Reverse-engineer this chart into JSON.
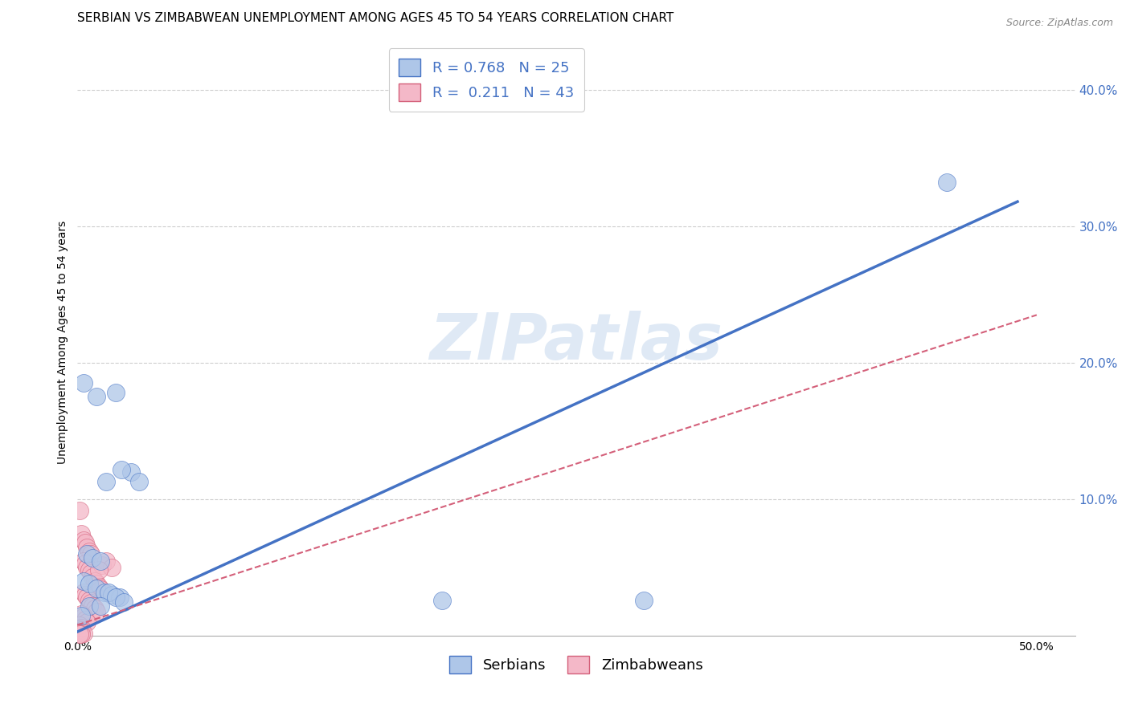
{
  "title": "SERBIAN VS ZIMBABWEAN UNEMPLOYMENT AMONG AGES 45 TO 54 YEARS CORRELATION CHART",
  "source": "Source: ZipAtlas.com",
  "ylabel": "Unemployment Among Ages 45 to 54 years",
  "xlim": [
    0.0,
    0.52
  ],
  "ylim": [
    -0.01,
    0.44
  ],
  "ytick_positions": [
    0.1,
    0.2,
    0.3,
    0.4
  ],
  "ytick_labels": [
    "10.0%",
    "20.0%",
    "30.0%",
    "40.0%"
  ],
  "xtick_positions": [
    0.0,
    0.5
  ],
  "xtick_labels": [
    "0.0%",
    "50.0%"
  ],
  "legend_entry1": "R = 0.768   N = 25",
  "legend_entry2": "R =  0.211   N = 43",
  "serbian_color": "#aec6e8",
  "zimbabwean_color": "#f4b8c8",
  "serbian_line_color": "#4472c4",
  "zimbabwean_line_color": "#d4607a",
  "watermark_text": "ZIPatlas",
  "serbian_points": [
    [
      0.003,
      0.185
    ],
    [
      0.01,
      0.175
    ],
    [
      0.02,
      0.178
    ],
    [
      0.028,
      0.12
    ],
    [
      0.015,
      0.113
    ],
    [
      0.023,
      0.122
    ],
    [
      0.032,
      0.113
    ],
    [
      0.005,
      0.06
    ],
    [
      0.008,
      0.057
    ],
    [
      0.012,
      0.055
    ],
    [
      0.003,
      0.04
    ],
    [
      0.006,
      0.038
    ],
    [
      0.01,
      0.035
    ],
    [
      0.014,
      0.032
    ],
    [
      0.018,
      0.03
    ],
    [
      0.022,
      0.028
    ],
    [
      0.016,
      0.032
    ],
    [
      0.02,
      0.028
    ],
    [
      0.024,
      0.025
    ],
    [
      0.006,
      0.022
    ],
    [
      0.012,
      0.022
    ],
    [
      0.19,
      0.026
    ],
    [
      0.295,
      0.026
    ],
    [
      0.453,
      0.332
    ],
    [
      0.002,
      0.015
    ]
  ],
  "zimbabwean_points": [
    [
      0.001,
      0.092
    ],
    [
      0.002,
      0.075
    ],
    [
      0.003,
      0.07
    ],
    [
      0.004,
      0.068
    ],
    [
      0.005,
      0.065
    ],
    [
      0.006,
      0.062
    ],
    [
      0.007,
      0.06
    ],
    [
      0.003,
      0.055
    ],
    [
      0.004,
      0.053
    ],
    [
      0.005,
      0.05
    ],
    [
      0.006,
      0.048
    ],
    [
      0.007,
      0.046
    ],
    [
      0.008,
      0.043
    ],
    [
      0.009,
      0.04
    ],
    [
      0.01,
      0.038
    ],
    [
      0.011,
      0.036
    ],
    [
      0.012,
      0.034
    ],
    [
      0.003,
      0.032
    ],
    [
      0.004,
      0.03
    ],
    [
      0.005,
      0.028
    ],
    [
      0.006,
      0.026
    ],
    [
      0.007,
      0.024
    ],
    [
      0.008,
      0.022
    ],
    [
      0.009,
      0.02
    ],
    [
      0.01,
      0.018
    ],
    [
      0.002,
      0.016
    ],
    [
      0.003,
      0.014
    ],
    [
      0.004,
      0.012
    ],
    [
      0.005,
      0.01
    ],
    [
      0.001,
      0.008
    ],
    [
      0.002,
      0.006
    ],
    [
      0.001,
      0.005
    ],
    [
      0.002,
      0.004
    ],
    [
      0.001,
      0.003
    ],
    [
      0.002,
      0.003
    ],
    [
      0.001,
      0.002
    ],
    [
      0.003,
      0.002
    ],
    [
      0.002,
      0.001
    ],
    [
      0.001,
      0.001
    ],
    [
      0.013,
      0.052
    ],
    [
      0.015,
      0.055
    ],
    [
      0.018,
      0.05
    ],
    [
      0.011,
      0.048
    ]
  ],
  "serbian_line_x": [
    0.0,
    0.49
  ],
  "serbian_line_y": [
    0.003,
    0.318
  ],
  "zimbabwean_line_x": [
    0.0,
    0.5
  ],
  "zimbabwean_line_y": [
    0.008,
    0.235
  ],
  "background_color": "#ffffff",
  "grid_color": "#c8c8c8",
  "title_fontsize": 11,
  "axis_label_fontsize": 10,
  "tick_fontsize": 11,
  "tick_color": "#4472c4",
  "legend_fontsize": 13
}
